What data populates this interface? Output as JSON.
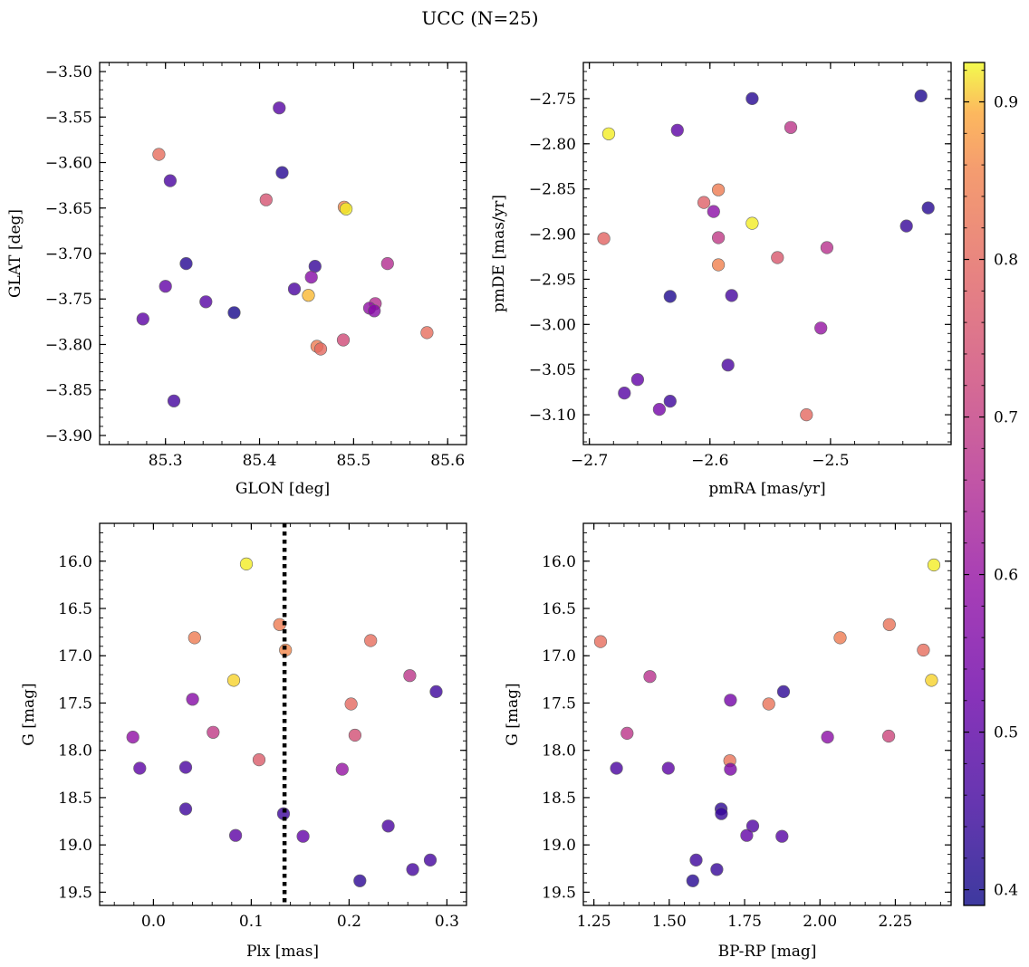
{
  "suptitle": "UCC (N=25)",
  "colorbar": {
    "range": [
      0.39,
      0.925
    ],
    "ticks": [
      0.4,
      0.5,
      0.6,
      0.7,
      0.8,
      0.9
    ],
    "tick_labels": [
      "0.4",
      "0.5",
      "0.6",
      "0.7",
      "0.8",
      "0.9"
    ],
    "colormap": "plasma",
    "alpha": 0.8
  },
  "chart_data": [
    {
      "type": "scatter",
      "name": "glon-glat",
      "xlabel": "GLON [deg]",
      "ylabel": "GLAT [deg]",
      "xlim": [
        85.23,
        85.62
      ],
      "ylim": [
        -3.91,
        -3.49
      ],
      "y_inverted": false,
      "xticks": [
        85.3,
        85.4,
        85.5,
        85.6
      ],
      "xtick_labels": [
        "85.3",
        "85.4",
        "85.5",
        "85.6"
      ],
      "yticks": [
        -3.5,
        -3.55,
        -3.6,
        -3.65,
        -3.7,
        -3.75,
        -3.8,
        -3.85,
        -3.9
      ],
      "ytick_labels": [
        "−3.50",
        "−3.55",
        "−3.60",
        "−3.65",
        "−3.70",
        "−3.75",
        "−3.80",
        "−3.85",
        "−3.90"
      ],
      "points": [
        {
          "x": 85.421,
          "y": -3.54,
          "c": 0.49
        },
        {
          "x": 85.293,
          "y": -3.591,
          "c": 0.81
        },
        {
          "x": 85.424,
          "y": -3.611,
          "c": 0.42
        },
        {
          "x": 85.305,
          "y": -3.62,
          "c": 0.47
        },
        {
          "x": 85.407,
          "y": -3.641,
          "c": 0.75
        },
        {
          "x": 85.49,
          "y": -3.649,
          "c": 0.86
        },
        {
          "x": 85.492,
          "y": -3.651,
          "c": 0.92
        },
        {
          "x": 85.322,
          "y": -3.711,
          "c": 0.42
        },
        {
          "x": 85.459,
          "y": -3.714,
          "c": 0.44
        },
        {
          "x": 85.536,
          "y": -3.711,
          "c": 0.66
        },
        {
          "x": 85.455,
          "y": -3.726,
          "c": 0.57
        },
        {
          "x": 85.437,
          "y": -3.739,
          "c": 0.47
        },
        {
          "x": 85.3,
          "y": -3.736,
          "c": 0.51
        },
        {
          "x": 85.452,
          "y": -3.746,
          "c": 0.9
        },
        {
          "x": 85.343,
          "y": -3.753,
          "c": 0.49
        },
        {
          "x": 85.523,
          "y": -3.755,
          "c": 0.66
        },
        {
          "x": 85.517,
          "y": -3.76,
          "c": 0.59
        },
        {
          "x": 85.522,
          "y": -3.763,
          "c": 0.57
        },
        {
          "x": 85.373,
          "y": -3.765,
          "c": 0.4
        },
        {
          "x": 85.276,
          "y": -3.772,
          "c": 0.5
        },
        {
          "x": 85.578,
          "y": -3.787,
          "c": 0.81
        },
        {
          "x": 85.489,
          "y": -3.795,
          "c": 0.73
        },
        {
          "x": 85.461,
          "y": -3.802,
          "c": 0.84
        },
        {
          "x": 85.465,
          "y": -3.805,
          "c": 0.8
        },
        {
          "x": 85.309,
          "y": -3.862,
          "c": 0.46
        }
      ]
    },
    {
      "type": "scatter",
      "name": "pmra-pmde",
      "xlabel": "pmRA [mas/yr]",
      "ylabel": "pmDE [mas/yr]",
      "xlim": [
        -2.705,
        -2.4
      ],
      "ylim": [
        -3.133,
        -2.71
      ],
      "y_inverted": false,
      "xticks": [
        -2.7,
        -2.6,
        -2.5
      ],
      "xtick_labels": [
        "−2.7",
        "−2.6",
        "−2.5"
      ],
      "yticks": [
        -2.75,
        -2.8,
        -2.85,
        -2.9,
        -2.95,
        -3.0,
        -3.05,
        -3.1
      ],
      "ytick_labels": [
        "−2.75",
        "−2.80",
        "−2.85",
        "−2.90",
        "−2.95",
        "−3.00",
        "−3.05",
        "−3.10"
      ],
      "points": [
        {
          "x": -2.425,
          "y": -2.747,
          "c": 0.41
        },
        {
          "x": -2.565,
          "y": -2.75,
          "c": 0.42
        },
        {
          "x": -2.533,
          "y": -2.782,
          "c": 0.68
        },
        {
          "x": -2.627,
          "y": -2.785,
          "c": 0.5
        },
        {
          "x": -2.684,
          "y": -2.789,
          "c": 0.92
        },
        {
          "x": -2.593,
          "y": -2.851,
          "c": 0.84
        },
        {
          "x": -2.605,
          "y": -2.865,
          "c": 0.78
        },
        {
          "x": -2.597,
          "y": -2.875,
          "c": 0.58
        },
        {
          "x": -2.565,
          "y": -2.888,
          "c": 0.92
        },
        {
          "x": -2.419,
          "y": -2.871,
          "c": 0.42
        },
        {
          "x": -2.437,
          "y": -2.891,
          "c": 0.44
        },
        {
          "x": -2.688,
          "y": -2.905,
          "c": 0.79
        },
        {
          "x": -2.593,
          "y": -2.904,
          "c": 0.69
        },
        {
          "x": -2.503,
          "y": -2.915,
          "c": 0.67
        },
        {
          "x": -2.544,
          "y": -2.926,
          "c": 0.76
        },
        {
          "x": -2.593,
          "y": -2.934,
          "c": 0.85
        },
        {
          "x": -2.633,
          "y": -2.969,
          "c": 0.41
        },
        {
          "x": -2.582,
          "y": -2.968,
          "c": 0.46
        },
        {
          "x": -2.508,
          "y": -3.004,
          "c": 0.6
        },
        {
          "x": -2.585,
          "y": -3.045,
          "c": 0.47
        },
        {
          "x": -2.66,
          "y": -3.061,
          "c": 0.51
        },
        {
          "x": -2.671,
          "y": -3.076,
          "c": 0.49
        },
        {
          "x": -2.633,
          "y": -3.085,
          "c": 0.45
        },
        {
          "x": -2.642,
          "y": -3.094,
          "c": 0.54
        },
        {
          "x": -2.52,
          "y": -3.1,
          "c": 0.8
        }
      ]
    },
    {
      "type": "scatter",
      "name": "plx-g",
      "xlabel": "Plx [mas]",
      "ylabel": "G [mag]",
      "xlim": [
        -0.055,
        0.32
      ],
      "ylim": [
        19.64,
        15.6
      ],
      "y_inverted": true,
      "vline": {
        "x": 0.134,
        "style": "dotted"
      },
      "xticks": [
        0.0,
        0.1,
        0.2,
        0.3
      ],
      "xtick_labels": [
        "0.0",
        "0.1",
        "0.2",
        "0.3"
      ],
      "yticks": [
        16.0,
        16.5,
        17.0,
        17.5,
        18.0,
        18.5,
        19.0,
        19.5
      ],
      "ytick_labels": [
        "16.0",
        "16.5",
        "17.0",
        "17.5",
        "18.0",
        "18.5",
        "19.0",
        "19.5"
      ],
      "points": [
        {
          "x": 0.095,
          "y": 16.03,
          "c": 0.92
        },
        {
          "x": 0.129,
          "y": 16.67,
          "c": 0.84
        },
        {
          "x": 0.042,
          "y": 16.81,
          "c": 0.84
        },
        {
          "x": 0.222,
          "y": 16.84,
          "c": 0.81
        },
        {
          "x": 0.135,
          "y": 16.94,
          "c": 0.86
        },
        {
          "x": 0.262,
          "y": 17.21,
          "c": 0.68
        },
        {
          "x": 0.082,
          "y": 17.26,
          "c": 0.91
        },
        {
          "x": 0.289,
          "y": 17.38,
          "c": 0.45
        },
        {
          "x": 0.04,
          "y": 17.46,
          "c": 0.57
        },
        {
          "x": 0.202,
          "y": 17.51,
          "c": 0.8
        },
        {
          "x": 0.061,
          "y": 17.81,
          "c": 0.69
        },
        {
          "x": 0.206,
          "y": 17.84,
          "c": 0.74
        },
        {
          "x": -0.021,
          "y": 17.86,
          "c": 0.59
        },
        {
          "x": 0.108,
          "y": 18.1,
          "c": 0.77
        },
        {
          "x": -0.014,
          "y": 18.19,
          "c": 0.5
        },
        {
          "x": 0.033,
          "y": 18.18,
          "c": 0.47
        },
        {
          "x": 0.193,
          "y": 18.2,
          "c": 0.6
        },
        {
          "x": 0.033,
          "y": 18.62,
          "c": 0.45
        },
        {
          "x": 0.133,
          "y": 18.67,
          "c": 0.45
        },
        {
          "x": 0.24,
          "y": 18.8,
          "c": 0.47
        },
        {
          "x": 0.084,
          "y": 18.9,
          "c": 0.5
        },
        {
          "x": 0.153,
          "y": 18.91,
          "c": 0.51
        },
        {
          "x": 0.283,
          "y": 19.16,
          "c": 0.46
        },
        {
          "x": 0.265,
          "y": 19.26,
          "c": 0.46
        },
        {
          "x": 0.211,
          "y": 19.38,
          "c": 0.43
        }
      ]
    },
    {
      "type": "scatter",
      "name": "bprp-g",
      "xlabel": "BP-RP [mag]",
      "ylabel": "G [mag]",
      "xlim": [
        1.215,
        2.435
      ],
      "ylim": [
        19.64,
        15.6
      ],
      "y_inverted": true,
      "xticks": [
        1.25,
        1.5,
        1.75,
        2.0,
        2.25
      ],
      "xtick_labels": [
        "1.25",
        "1.50",
        "1.75",
        "2.00",
        "2.25"
      ],
      "yticks": [
        16.0,
        16.5,
        17.0,
        17.5,
        18.0,
        18.5,
        19.0,
        19.5
      ],
      "ytick_labels": [
        "16.0",
        "16.5",
        "17.0",
        "17.5",
        "18.0",
        "18.5",
        "19.0",
        "19.5"
      ],
      "points": [
        {
          "x": 2.378,
          "y": 16.04,
          "c": 0.92
        },
        {
          "x": 2.23,
          "y": 16.67,
          "c": 0.82
        },
        {
          "x": 2.067,
          "y": 16.81,
          "c": 0.84
        },
        {
          "x": 1.272,
          "y": 16.85,
          "c": 0.81
        },
        {
          "x": 2.343,
          "y": 16.94,
          "c": 0.81
        },
        {
          "x": 1.436,
          "y": 17.22,
          "c": 0.67
        },
        {
          "x": 2.37,
          "y": 17.26,
          "c": 0.91
        },
        {
          "x": 1.879,
          "y": 17.38,
          "c": 0.43
        },
        {
          "x": 1.703,
          "y": 17.47,
          "c": 0.54
        },
        {
          "x": 1.83,
          "y": 17.51,
          "c": 0.82
        },
        {
          "x": 1.36,
          "y": 17.82,
          "c": 0.68
        },
        {
          "x": 2.228,
          "y": 17.85,
          "c": 0.72
        },
        {
          "x": 2.025,
          "y": 17.86,
          "c": 0.58
        },
        {
          "x": 1.701,
          "y": 18.11,
          "c": 0.82
        },
        {
          "x": 1.325,
          "y": 18.19,
          "c": 0.47
        },
        {
          "x": 1.497,
          "y": 18.19,
          "c": 0.5
        },
        {
          "x": 1.703,
          "y": 18.2,
          "c": 0.55
        },
        {
          "x": 1.672,
          "y": 18.62,
          "c": 0.43
        },
        {
          "x": 1.673,
          "y": 18.67,
          "c": 0.44
        },
        {
          "x": 1.777,
          "y": 18.8,
          "c": 0.48
        },
        {
          "x": 1.757,
          "y": 18.9,
          "c": 0.51
        },
        {
          "x": 1.874,
          "y": 18.91,
          "c": 0.49
        },
        {
          "x": 1.589,
          "y": 19.16,
          "c": 0.45
        },
        {
          "x": 1.658,
          "y": 19.26,
          "c": 0.44
        },
        {
          "x": 1.578,
          "y": 19.38,
          "c": 0.42
        }
      ]
    }
  ]
}
